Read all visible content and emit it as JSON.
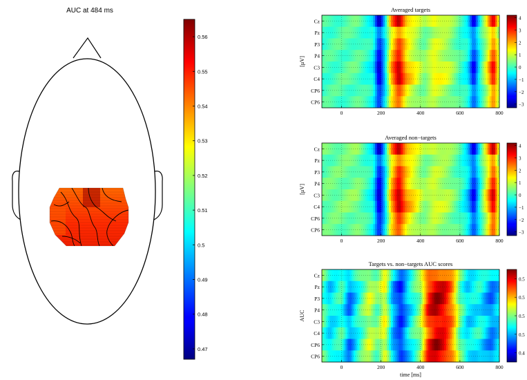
{
  "topomap": {
    "title": "AUC at 484 ms",
    "colorbar": {
      "range": [
        0.467,
        0.565
      ],
      "ticks": [
        "0.56",
        "0.55",
        "0.54",
        "0.53",
        "0.52",
        "0.51",
        "0.5",
        "0.49",
        "0.48",
        "0.47"
      ]
    }
  },
  "chart_data": [
    {
      "type": "heatmap",
      "title": "Averaged targets",
      "ylabel": "[µV]",
      "xlabel": "",
      "rows": [
        "Cz",
        "Pz",
        "P3",
        "P4",
        "C3",
        "C4",
        "CP6",
        "CP6"
      ],
      "xlim": [
        -100,
        800
      ],
      "xticks": [
        "0",
        "200",
        "400",
        "600",
        "800"
      ],
      "grid": true,
      "colorbar": {
        "range": [
          -3.3,
          4.2
        ],
        "ticks": [
          "4",
          "3",
          "2",
          "1",
          "0",
          "-1",
          "-2",
          "-3"
        ]
      },
      "profile": [
        {
          "x": -100,
          "v": 0
        },
        {
          "x": 80,
          "v": 0.2
        },
        {
          "x": 160,
          "v": -0.5
        },
        {
          "x": 190,
          "v": -3
        },
        {
          "x": 220,
          "v": -1
        },
        {
          "x": 250,
          "v": 2
        },
        {
          "x": 290,
          "v": 4
        },
        {
          "x": 330,
          "v": 2
        },
        {
          "x": 420,
          "v": 0.5
        },
        {
          "x": 470,
          "v": 1.5
        },
        {
          "x": 540,
          "v": 1
        },
        {
          "x": 600,
          "v": 0
        },
        {
          "x": 640,
          "v": -0.5
        },
        {
          "x": 670,
          "v": -2.5
        },
        {
          "x": 700,
          "v": -0.5
        },
        {
          "x": 740,
          "v": 1.5
        },
        {
          "x": 770,
          "v": 3.5
        },
        {
          "x": 800,
          "v": 1
        }
      ],
      "row_gain": [
        1.0,
        0.6,
        0.7,
        0.75,
        1.0,
        1.0,
        0.65,
        0.6
      ]
    },
    {
      "type": "heatmap",
      "title": "Averaged non−targets",
      "ylabel": "[µV]",
      "xlabel": "",
      "rows": [
        "Cz",
        "Pz",
        "P3",
        "P4",
        "C3",
        "C4",
        "CP6",
        "CP6"
      ],
      "xlim": [
        -100,
        800
      ],
      "xticks": [
        "0",
        "200",
        "400",
        "600",
        "800"
      ],
      "grid": true,
      "colorbar": {
        "range": [
          -3.3,
          4.2
        ],
        "ticks": [
          "4",
          "3",
          "2",
          "1",
          "0",
          "-1",
          "-2",
          "-3"
        ]
      },
      "profile": [
        {
          "x": -100,
          "v": 0.3
        },
        {
          "x": 80,
          "v": 0.5
        },
        {
          "x": 160,
          "v": -0.5
        },
        {
          "x": 190,
          "v": -3
        },
        {
          "x": 220,
          "v": -1
        },
        {
          "x": 250,
          "v": 2
        },
        {
          "x": 290,
          "v": 4
        },
        {
          "x": 330,
          "v": 2.2
        },
        {
          "x": 420,
          "v": 0.6
        },
        {
          "x": 470,
          "v": 1.2
        },
        {
          "x": 540,
          "v": 0.8
        },
        {
          "x": 600,
          "v": 0
        },
        {
          "x": 640,
          "v": -0.8
        },
        {
          "x": 670,
          "v": -2.5
        },
        {
          "x": 700,
          "v": -0.5
        },
        {
          "x": 740,
          "v": 1.8
        },
        {
          "x": 770,
          "v": 3.8
        },
        {
          "x": 800,
          "v": 1
        }
      ],
      "row_gain": [
        1.0,
        0.65,
        0.75,
        0.8,
        1.0,
        1.0,
        0.7,
        0.65
      ]
    },
    {
      "type": "heatmap",
      "title": "Targets vs. non−targets AUC scores",
      "ylabel": "AUC",
      "xlabel": "time [ms]",
      "rows": [
        "Cz",
        "Pz",
        "P3",
        "P4",
        "C3",
        "C4",
        "CP6",
        "CP6"
      ],
      "xlim": [
        -100,
        800
      ],
      "xticks": [
        "0",
        "200",
        "400",
        "600",
        "800"
      ],
      "grid": true,
      "colorbar": {
        "range": [
          0.37,
          0.58
        ],
        "ticks": [
          "0.5",
          "0.5",
          "0.5",
          "0.5",
          "0.4"
        ]
      },
      "profile": [
        {
          "x": -100,
          "v": 0.47
        },
        {
          "x": -60,
          "v": 0.44
        },
        {
          "x": 0,
          "v": 0.46
        },
        {
          "x": 40,
          "v": 0.42
        },
        {
          "x": 80,
          "v": 0.45
        },
        {
          "x": 140,
          "v": 0.49
        },
        {
          "x": 180,
          "v": 0.47
        },
        {
          "x": 220,
          "v": 0.5
        },
        {
          "x": 260,
          "v": 0.43
        },
        {
          "x": 300,
          "v": 0.4
        },
        {
          "x": 340,
          "v": 0.44
        },
        {
          "x": 400,
          "v": 0.48
        },
        {
          "x": 440,
          "v": 0.55
        },
        {
          "x": 480,
          "v": 0.57
        },
        {
          "x": 520,
          "v": 0.56
        },
        {
          "x": 560,
          "v": 0.53
        },
        {
          "x": 600,
          "v": 0.47
        },
        {
          "x": 640,
          "v": 0.44
        },
        {
          "x": 700,
          "v": 0.45
        },
        {
          "x": 760,
          "v": 0.42
        },
        {
          "x": 800,
          "v": 0.44
        }
      ],
      "row_gain": [
        0.7,
        0.95,
        1.0,
        1.0,
        0.9,
        0.85,
        1.0,
        0.95
      ]
    }
  ]
}
